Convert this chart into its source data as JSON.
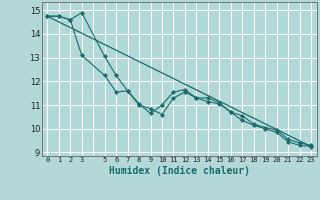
{
  "xlabel": "Humidex (Indice chaleur)",
  "background_color": "#b2d8d8",
  "grid_color": "#ffffff",
  "line_color": "#1a6b6b",
  "xlim": [
    -0.5,
    23.5
  ],
  "ylim": [
    8.85,
    15.35
  ],
  "yticks": [
    9,
    10,
    11,
    12,
    13,
    14,
    15
  ],
  "xticks": [
    0,
    1,
    2,
    3,
    4,
    5,
    6,
    7,
    8,
    9,
    10,
    11,
    12,
    13,
    14,
    15,
    16,
    17,
    18,
    19,
    20,
    21,
    22,
    23
  ],
  "series1_x": [
    0,
    1,
    2,
    3,
    5,
    6,
    7,
    8,
    9,
    10,
    11,
    12,
    13,
    14,
    15,
    16,
    17,
    18,
    19,
    20,
    21,
    22,
    23
  ],
  "series1_y": [
    14.75,
    14.75,
    14.6,
    14.9,
    13.05,
    12.25,
    11.6,
    11.0,
    10.85,
    10.6,
    11.3,
    11.55,
    11.3,
    11.3,
    11.1,
    10.7,
    10.55,
    10.2,
    10.05,
    9.95,
    9.55,
    9.4,
    9.3
  ],
  "series2_x": [
    0,
    1,
    2,
    3,
    5,
    6,
    7,
    8,
    9,
    10,
    11,
    12,
    13,
    14,
    15,
    16,
    17,
    18,
    19,
    20,
    21,
    22,
    23
  ],
  "series2_y": [
    14.75,
    14.75,
    14.6,
    13.1,
    12.25,
    11.55,
    11.6,
    11.05,
    10.65,
    11.0,
    11.55,
    11.65,
    11.3,
    11.15,
    11.05,
    10.7,
    10.35,
    10.15,
    10.0,
    9.85,
    9.45,
    9.3,
    9.25
  ],
  "series3_x": [
    0,
    23
  ],
  "series3_y": [
    14.75,
    9.25
  ],
  "xtick_labels": [
    "0",
    "1",
    "2",
    "3",
    "",
    "5",
    "6",
    "7",
    "8",
    "9",
    "10",
    "11",
    "12",
    "13",
    "14",
    "15",
    "16",
    "17",
    "18",
    "19",
    "20",
    "21",
    "22",
    "23"
  ]
}
